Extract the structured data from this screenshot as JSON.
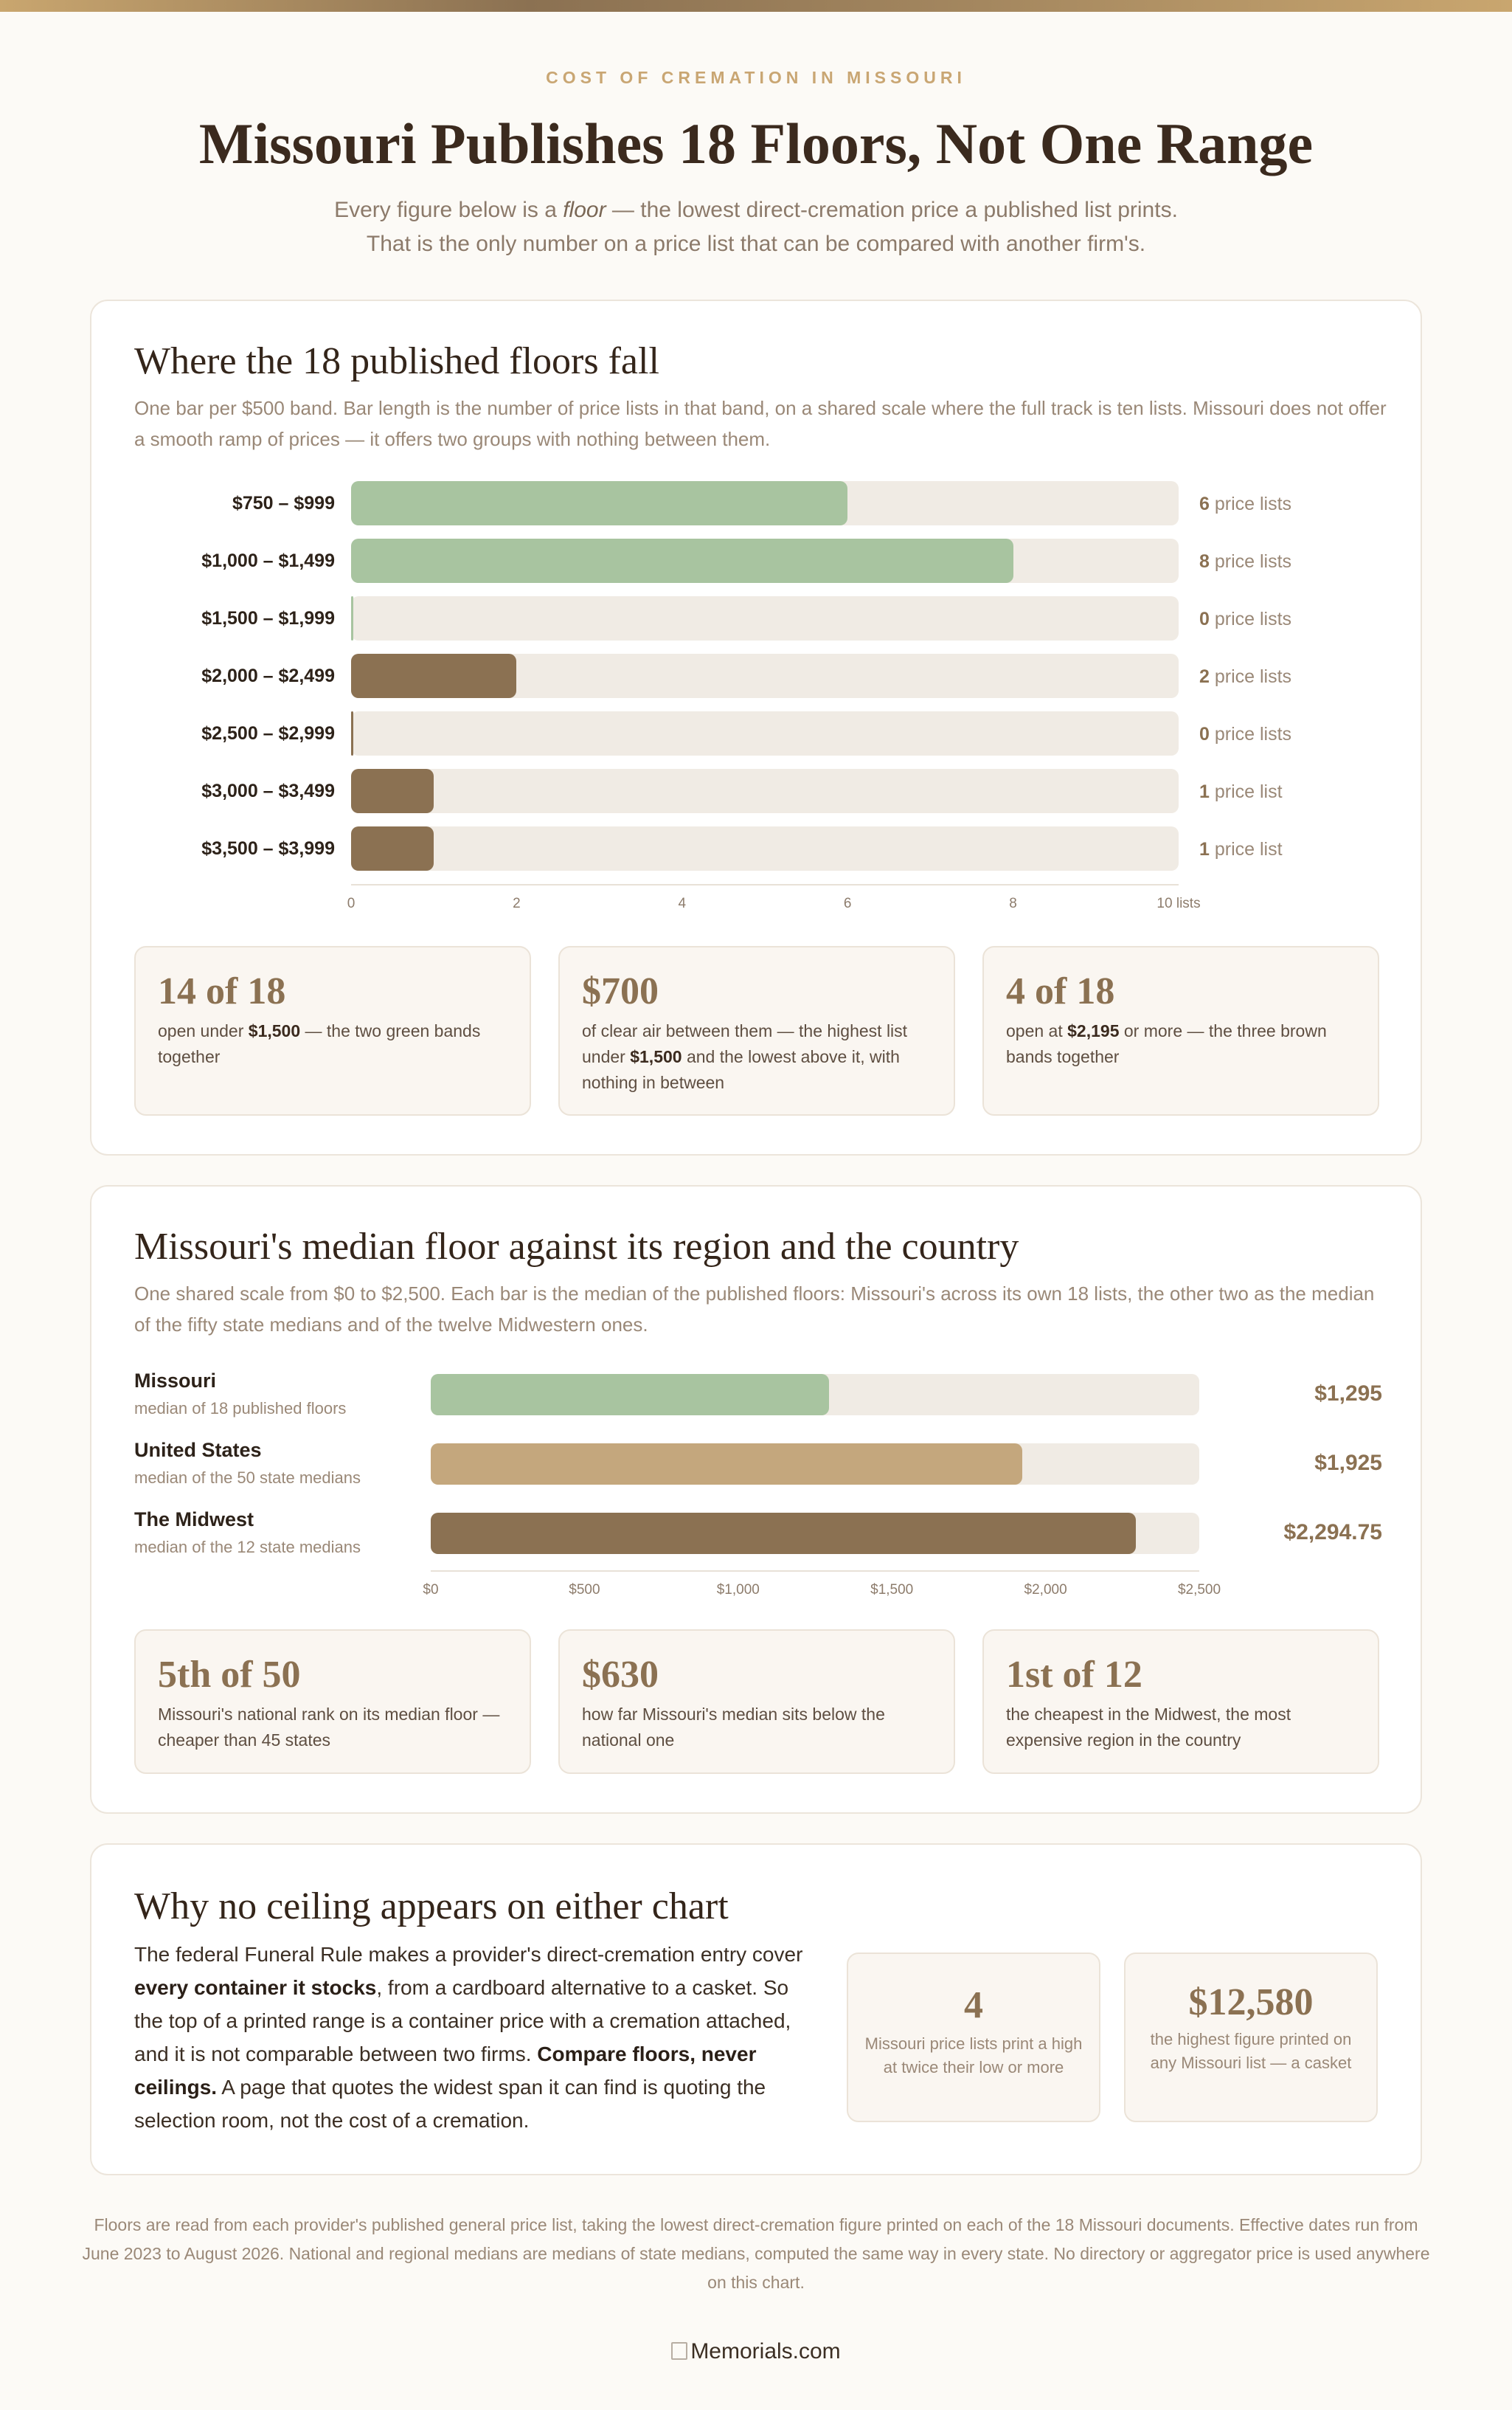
{
  "header": {
    "eyebrow": "COST OF CREMATION IN MISSOURI",
    "title": "Missouri Publishes 18 Floors, Not One Range",
    "subtitle_line1_a": "Every figure below is a ",
    "subtitle_line1_em": "floor",
    "subtitle_line1_b": " — the lowest direct-cremation price a published list prints.",
    "subtitle_line2": "That is the only number on a price list that can be compared with another firm's."
  },
  "section1": {
    "title": "Where the 18 published floors fall",
    "description": "One bar per $500 band. Bar length is the number of price lists in that band, on a shared scale where the full track is ten lists. Missouri does not offer a smooth ramp of prices — it offers two groups with nothing between them.",
    "stats": [
      {
        "big": "14 of 18",
        "text_a": "open under ",
        "text_b": "$1,500",
        "text_c": " — the two green bands together"
      },
      {
        "big": "$700",
        "text_a": "of clear air between them — the highest list under ",
        "text_b": "$1,500",
        "text_c": " and the lowest above it, with nothing in between"
      },
      {
        "big": "4 of 18",
        "text_a": "open at ",
        "text_b": "$2,195",
        "text_c": " or more — the three brown bands together"
      }
    ]
  },
  "section2": {
    "title": "Missouri's median floor against its region and the country",
    "description": "One shared scale from $0 to $2,500. Each bar is the median of the published floors: Missouri's across its own 18 lists, the other two as the median of the fifty state medians and of the twelve Midwestern ones.",
    "stats": [
      {
        "big": "5th of 50",
        "text": "Missouri's national rank on its median floor — cheaper than 45 states"
      },
      {
        "big": "$630",
        "text": "how far Missouri's median sits below the national one"
      },
      {
        "big": "1st of 12",
        "text": "the cheapest in the Midwest, the most expensive region in the country"
      }
    ]
  },
  "section3": {
    "title": "Why no ceiling appears on either chart",
    "body_1": "The federal Funeral Rule makes a provider's direct-cremation entry cover ",
    "body_2": "every container it stocks",
    "body_3": ", from a cardboard alternative to a casket. So the top of a printed range is a container price with a cremation attached, and it is not comparable between two firms. ",
    "body_4": "Compare floors, never ceilings.",
    "body_5": " A page that quotes the widest span it can find is quoting the selection room, not the cost of a cremation.",
    "mini": [
      {
        "big": "4",
        "text_1": "Missouri price lists print a high",
        "text_2": "at twice their low or more"
      },
      {
        "big": "$12,580",
        "text_1": "the highest figure printed on any Missouri list — a casket",
        "text_2": ""
      }
    ]
  },
  "footnote": "Floors are read from each provider's published general price list, taking the lowest direct-cremation figure printed on each of the 18 Missouri documents. Effective dates run from June 2023 to August 2026. National and regional medians are medians of state medians, computed the same way in every state. No directory or aggregator price is used anywhere on this chart.",
  "logo_alt": "Memorials.com",
  "colors": {
    "green": "#a8c4a0",
    "tan": "#c4a77d",
    "brown": "#8b7152",
    "track": "#f0ebe4"
  },
  "chart_data": [
    {
      "type": "bar",
      "orientation": "horizontal",
      "categories": [
        "$750 – $999",
        "$1,000 – $1,499",
        "$1,500 – $1,999",
        "$2,000 – $2,499",
        "$2,500 – $2,999",
        "$3,000 – $3,499",
        "$3,500 – $3,999"
      ],
      "values": [
        6,
        8,
        0,
        2,
        0,
        1,
        1
      ],
      "value_labels": [
        "price lists",
        "price lists",
        "price lists",
        "price lists",
        "price lists",
        "price list",
        "price list"
      ],
      "bar_colors": [
        "#a8c4a0",
        "#a8c4a0",
        "#a8c4a0",
        "#8b7152",
        "#8b7152",
        "#8b7152",
        "#8b7152"
      ],
      "xlim": [
        0,
        10
      ],
      "xticks": [
        "0",
        "2",
        "4",
        "6",
        "8",
        "10 lists"
      ],
      "grid": false
    },
    {
      "type": "bar",
      "orientation": "horizontal",
      "categories": [
        "Missouri",
        "United States",
        "The Midwest"
      ],
      "subtitles": [
        "median of 18 published floors",
        "median of the 50 state medians",
        "median of the 12 state medians"
      ],
      "values": [
        1295,
        1925,
        2294.75
      ],
      "value_labels": [
        "$1,295",
        "$1,925",
        "$2,294.75"
      ],
      "bar_colors": [
        "#a8c4a0",
        "#c4a77d",
        "#8b7152"
      ],
      "xlim": [
        0,
        2500
      ],
      "xticks": [
        "$0",
        "$500",
        "$1,000",
        "$1,500",
        "$2,000",
        "$2,500"
      ],
      "grid": false
    }
  ]
}
